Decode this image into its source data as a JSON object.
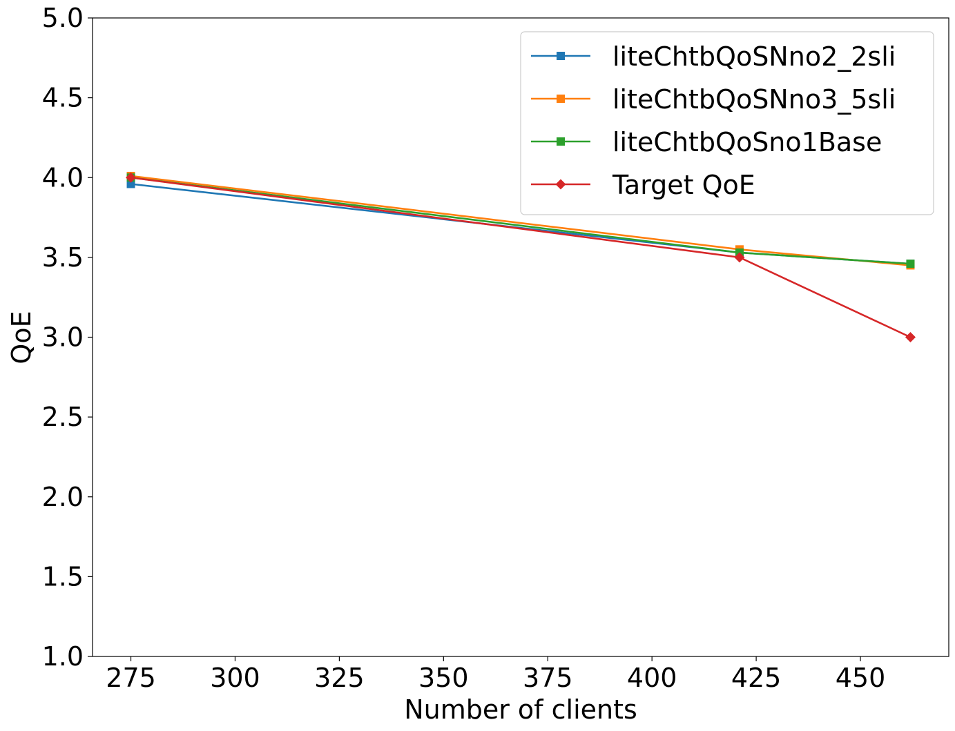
{
  "chart_data": {
    "type": "line",
    "title": "",
    "xlabel": "Number of clients",
    "ylabel": "QoE",
    "xlim": [
      265.8,
      471.2
    ],
    "ylim": [
      1.0,
      5.0
    ],
    "xticks": [
      275,
      300,
      325,
      350,
      375,
      400,
      425,
      450
    ],
    "xtick_labels": [
      "275",
      "300",
      "325",
      "350",
      "375",
      "400",
      "425",
      "450"
    ],
    "yticks": [
      1.0,
      1.5,
      2.0,
      2.5,
      3.0,
      3.5,
      4.0,
      4.5,
      5.0
    ],
    "ytick_labels": [
      "1.0",
      "1.5",
      "2.0",
      "2.5",
      "3.0",
      "3.5",
      "4.0",
      "4.5",
      "5.0"
    ],
    "grid": false,
    "legend_position": "top-right",
    "series": [
      {
        "name": "liteChtbQoSNno2_2sli",
        "color": "#1f77b4",
        "marker": "square",
        "x": [
          275,
          421,
          462
        ],
        "y": [
          3.96,
          3.53,
          3.46
        ]
      },
      {
        "name": "liteChtbQoSNno3_5sli",
        "color": "#ff7f0e",
        "marker": "square",
        "x": [
          275,
          421,
          462
        ],
        "y": [
          4.01,
          3.55,
          3.45
        ]
      },
      {
        "name": "liteChtbQoSno1Base",
        "color": "#2ca02c",
        "marker": "square",
        "x": [
          275,
          421,
          462
        ],
        "y": [
          4.0,
          3.53,
          3.46
        ]
      },
      {
        "name": "Target QoE",
        "color": "#d62728",
        "marker": "diamond",
        "x": [
          275,
          421,
          462
        ],
        "y": [
          4.0,
          3.5,
          3.0
        ]
      }
    ]
  }
}
